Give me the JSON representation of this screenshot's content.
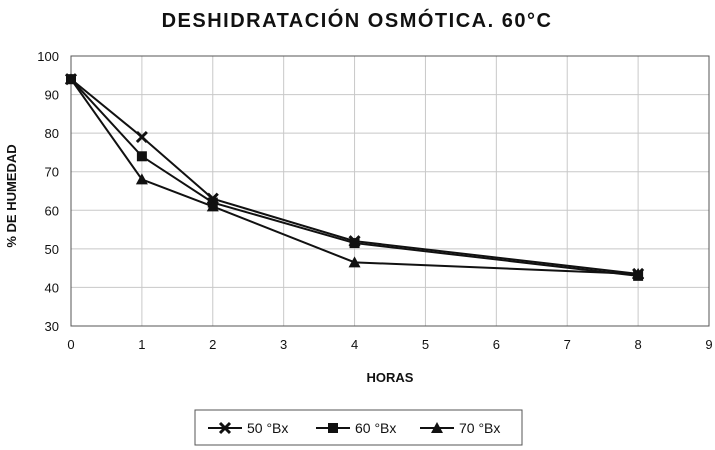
{
  "chart_data": {
    "type": "line",
    "title": "DESHIDRATACIÓN OSMÓTICA. 60°C",
    "xlabel": "HORAS",
    "ylabel": "% DE HUMEDAD",
    "xlim": [
      0,
      9
    ],
    "ylim": [
      30,
      100
    ],
    "xticks": [
      0,
      1,
      2,
      3,
      4,
      5,
      6,
      7,
      8,
      9
    ],
    "yticks": [
      30,
      40,
      50,
      60,
      70,
      80,
      90,
      100
    ],
    "grid": true,
    "legend_position": "bottom-center",
    "series": [
      {
        "name": "50 °Bx",
        "marker": "x",
        "x": [
          0,
          1,
          2,
          4,
          8
        ],
        "y": [
          94,
          79,
          63,
          52,
          43.5
        ]
      },
      {
        "name": "60 °Bx",
        "marker": "square",
        "x": [
          0,
          1,
          2,
          4,
          8
        ],
        "y": [
          94,
          74,
          62,
          51.5,
          43
        ]
      },
      {
        "name": "70 °Bx",
        "marker": "triangle",
        "x": [
          0,
          1,
          2,
          4,
          8
        ],
        "y": [
          94,
          68,
          61,
          46.5,
          43.5
        ]
      }
    ]
  }
}
